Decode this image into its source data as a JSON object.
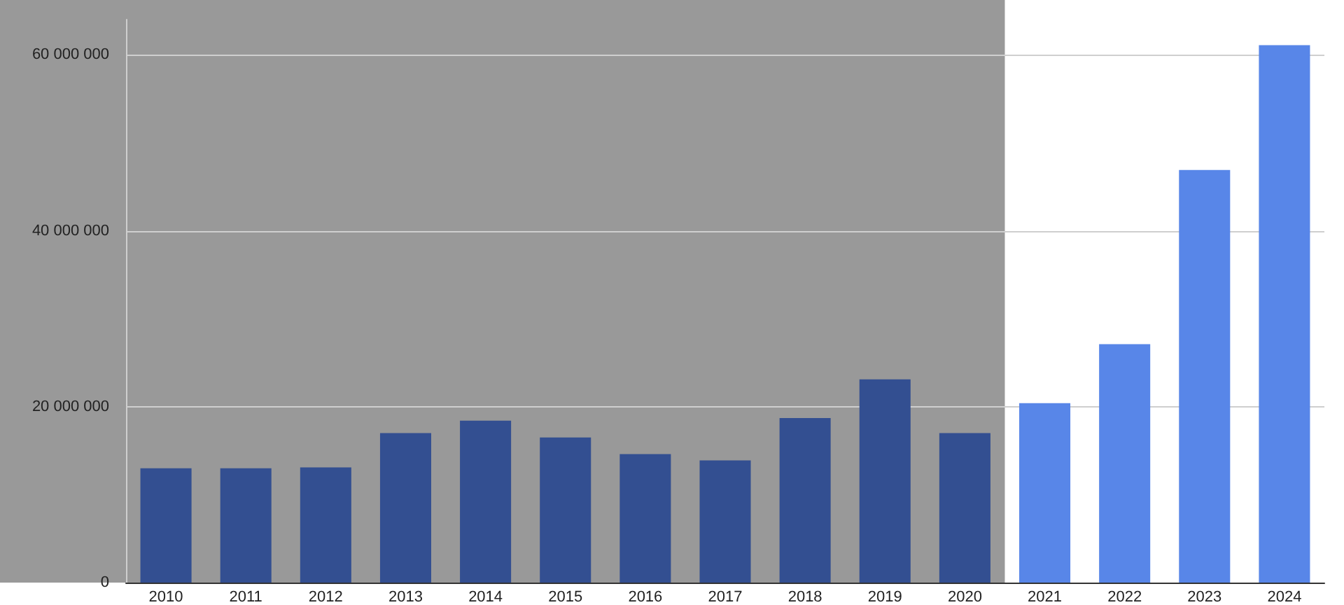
{
  "chart_data": {
    "type": "bar",
    "categories": [
      "2010",
      "2011",
      "2012",
      "2013",
      "2014",
      "2015",
      "2016",
      "2017",
      "2018",
      "2019",
      "2020",
      "2021",
      "2022",
      "2023",
      "2024"
    ],
    "values": [
      13000000.0,
      13000000.0,
      13100000.0,
      17000000.0,
      18400000.0,
      16500000.0,
      14600000.0,
      13900000.0,
      18700000.0,
      23100000.0,
      17000000.0,
      20400000.0,
      27100000.0,
      46900000.0,
      61100000.0
    ],
    "colors": [
      "#334f91",
      "#334f91",
      "#334f91",
      "#334f91",
      "#334f91",
      "#334f91",
      "#334f91",
      "#334f91",
      "#334f91",
      "#334f91",
      "#334f91",
      "#5886e8",
      "#5886e8",
      "#5886e8",
      "#5886e8"
    ],
    "ylim": [
      0,
      64000000
    ],
    "yticks": [
      0,
      {
        "value": 20000000,
        "label": "20 000 000"
      },
      {
        "value": 40000000,
        "label": "40 000 000"
      },
      {
        "value": 60000000,
        "label": "60 000 000"
      }
    ],
    "grid": "y",
    "bands": [
      {
        "axis": "x",
        "from": "2010",
        "to": "2020",
        "color": "#999999"
      }
    ]
  }
}
